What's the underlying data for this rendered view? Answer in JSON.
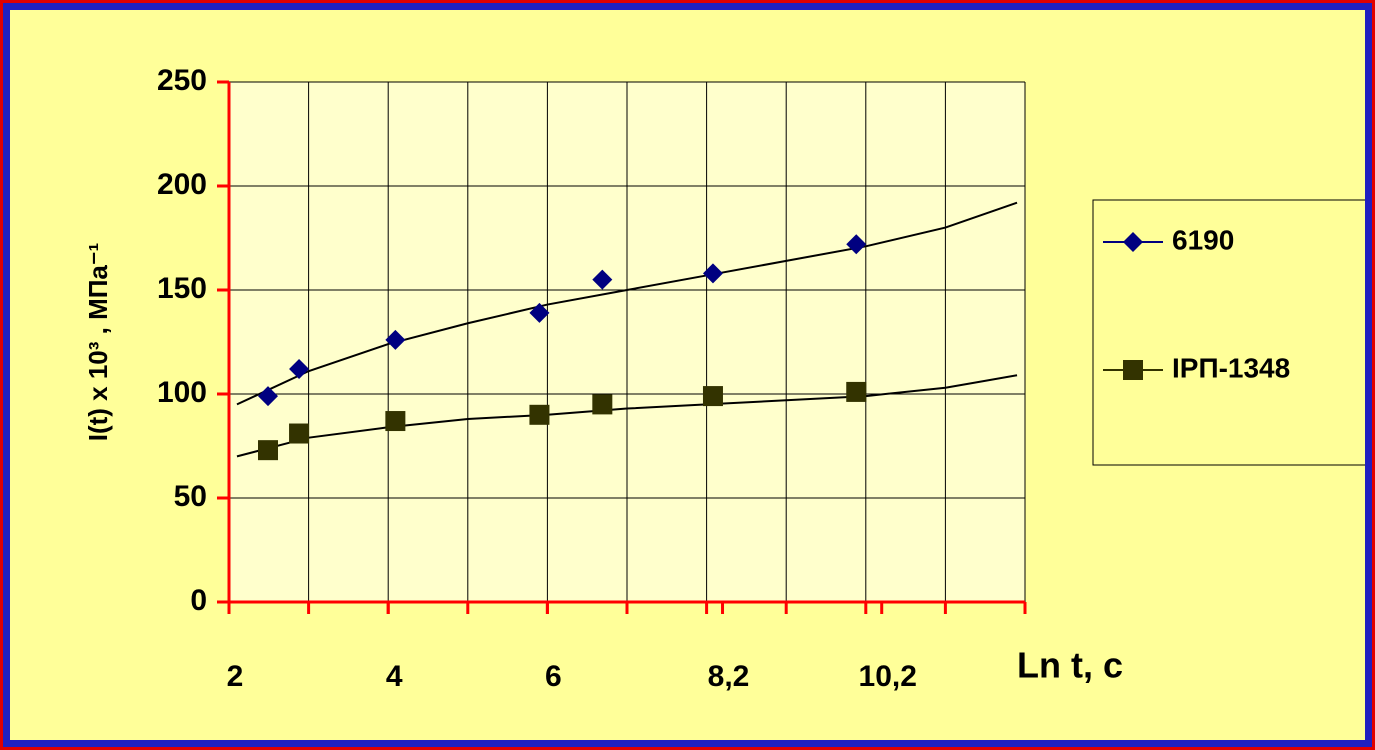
{
  "chart_data": {
    "type": "scatter",
    "xlabel": "Ln t, с",
    "ylabel": "I(t) x 10³ , МПа⁻¹",
    "xlim": [
      2,
      12
    ],
    "xticks": [
      2,
      4,
      6,
      {
        "value": 8.2,
        "label": "8,2"
      },
      {
        "value": 10.2,
        "label": "10,2"
      }
    ],
    "xgrid_step": 1,
    "ylim": [
      0,
      250
    ],
    "yticks": [
      0,
      50,
      100,
      150,
      200,
      250
    ],
    "grid": true,
    "legend": "right",
    "series": [
      {
        "name": "6190",
        "color": "#000080",
        "marker": "diamond",
        "x": [
          2.49,
          2.88,
          4.09,
          5.9,
          6.69,
          8.08,
          9.88
        ],
        "values": [
          99,
          112,
          126,
          139,
          155,
          158,
          172
        ],
        "trend_x": [
          2.1,
          3,
          4,
          5,
          6,
          7,
          8,
          9,
          10,
          11,
          11.9
        ],
        "trend_values": [
          95,
          111,
          124,
          134,
          143,
          150,
          157,
          164,
          171,
          180,
          192
        ]
      },
      {
        "name": "ІРП-1348",
        "color": "#333300",
        "marker": "square",
        "x": [
          2.49,
          2.88,
          4.09,
          5.9,
          6.69,
          8.08,
          9.88
        ],
        "values": [
          73,
          81,
          87,
          90,
          95,
          99,
          101
        ],
        "trend_x": [
          2.1,
          3,
          4,
          5,
          6,
          7,
          8,
          9,
          10,
          11,
          11.9
        ],
        "trend_values": [
          70,
          79,
          84,
          88,
          90,
          93,
          95,
          97,
          99,
          103,
          109
        ]
      }
    ]
  }
}
